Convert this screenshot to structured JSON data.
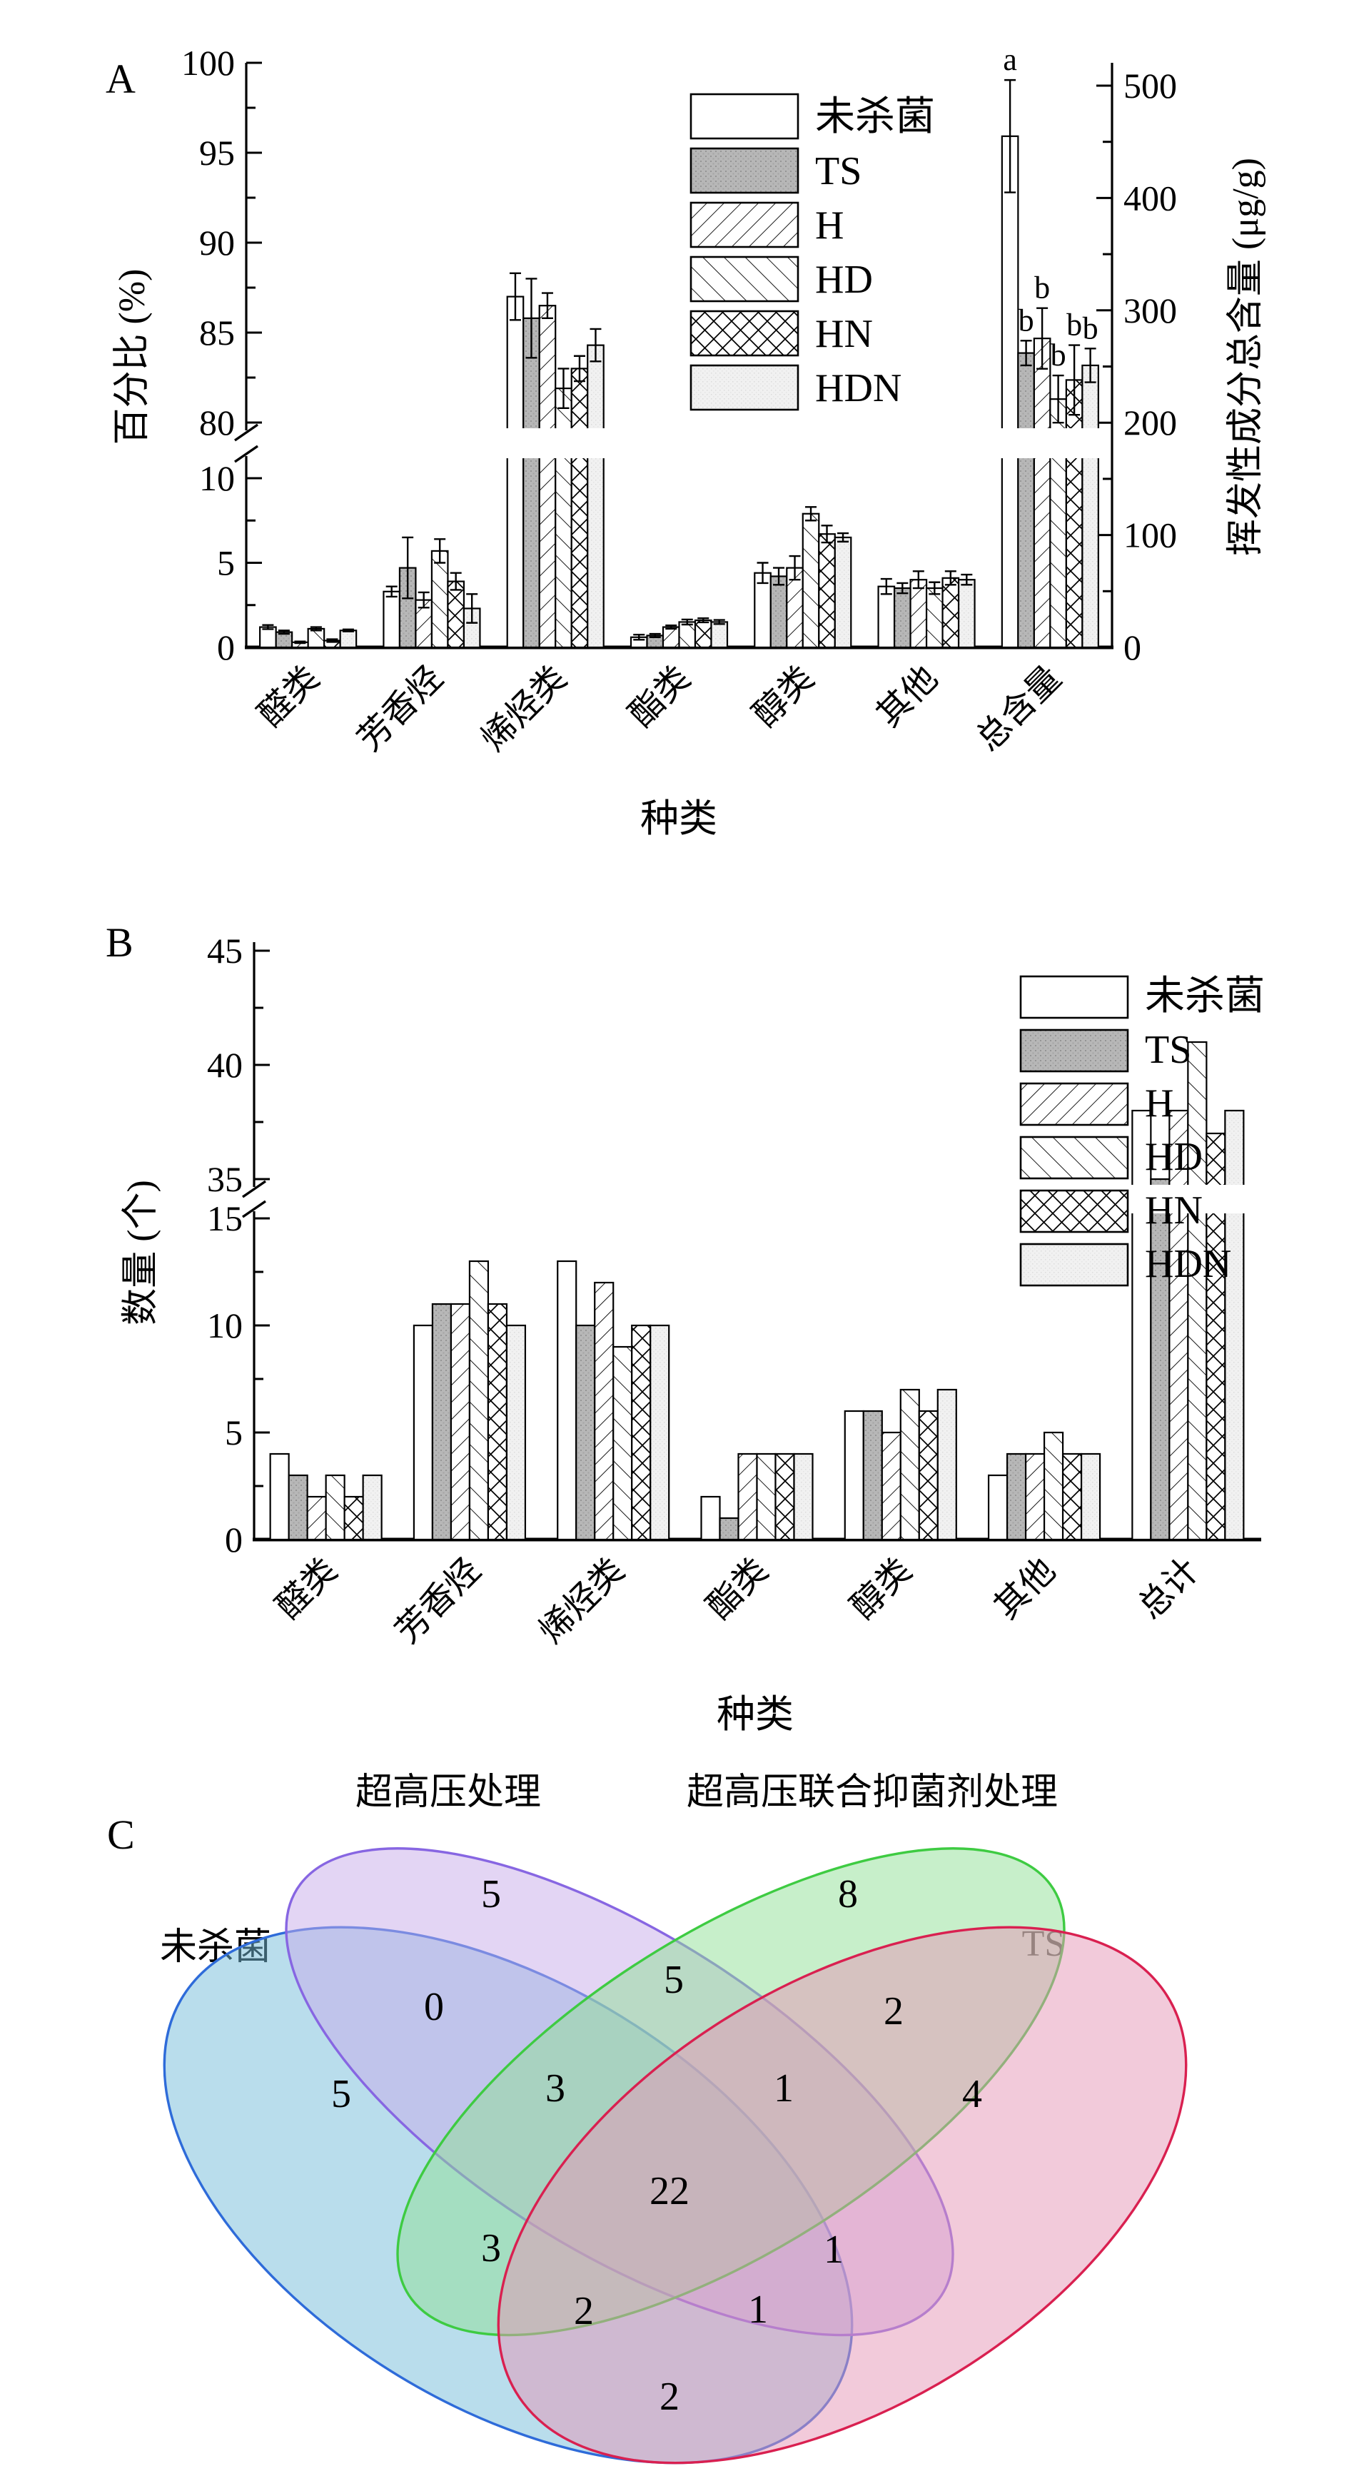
{
  "labels": {
    "panel_a": "A",
    "panel_b": "B",
    "panel_c": "C"
  },
  "chart_data": [
    {
      "panel": "A",
      "type": "bar",
      "xlabel": "种类",
      "ylabel_left": "百分比 (%)",
      "ylabel_right": "挥发性成分总含量 (μg/g)",
      "categories": [
        "醛类",
        "芳香烃",
        "烯烃类",
        "酯类",
        "醇类",
        "其他",
        "总含量"
      ],
      "right_axis_category": "总含量",
      "axis_break": {
        "lower_ticks": [
          0,
          5,
          10
        ],
        "upper_ticks": [
          80,
          85,
          90,
          95,
          100
        ]
      },
      "right_ticks": [
        0,
        100,
        200,
        300,
        400,
        500
      ],
      "legend": [
        "未杀菌",
        "TS",
        "H",
        "HD",
        "HN",
        "HDN"
      ],
      "series": [
        {
          "name": "未杀菌",
          "values": [
            1.2,
            3.3,
            87.0,
            0.6,
            4.4,
            3.6,
            455
          ],
          "errors": [
            0.12,
            0.3,
            1.3,
            0.15,
            0.6,
            0.45,
            50
          ],
          "sig_total": "a"
        },
        {
          "name": "TS",
          "values": [
            0.9,
            4.7,
            85.8,
            0.7,
            4.2,
            3.5,
            262
          ],
          "errors": [
            0.1,
            1.8,
            2.2,
            0.1,
            0.5,
            0.3,
            11
          ],
          "sig_total": "b"
        },
        {
          "name": "H",
          "values": [
            0.3,
            2.8,
            86.5,
            1.2,
            4.7,
            4.0,
            275
          ],
          "errors": [
            0.05,
            0.45,
            0.7,
            0.1,
            0.7,
            0.5,
            27
          ],
          "sig_total": "b"
        },
        {
          "name": "HD",
          "values": [
            1.1,
            5.7,
            81.9,
            1.5,
            7.9,
            3.5,
            221
          ],
          "errors": [
            0.1,
            0.7,
            1.1,
            0.15,
            0.4,
            0.35,
            21
          ],
          "sig_total": "b"
        },
        {
          "name": "HN",
          "values": [
            0.4,
            3.9,
            83.0,
            1.6,
            6.7,
            4.1,
            238
          ],
          "errors": [
            0.08,
            0.5,
            0.7,
            0.12,
            0.5,
            0.4,
            31
          ],
          "sig_total": "b"
        },
        {
          "name": "HDN",
          "values": [
            1.0,
            2.3,
            84.3,
            1.5,
            6.5,
            4.0,
            251
          ],
          "errors": [
            0.06,
            0.85,
            0.9,
            0.12,
            0.25,
            0.3,
            15
          ],
          "sig_total": "b"
        }
      ]
    },
    {
      "panel": "B",
      "type": "bar",
      "xlabel": "种类",
      "ylabel_left": "数量 (个)",
      "categories": [
        "醛类",
        "芳香烃",
        "烯烃类",
        "酯类",
        "醇类",
        "其他",
        "总计"
      ],
      "axis_break": {
        "lower_ticks": [
          0,
          5,
          10,
          15
        ],
        "upper_ticks": [
          35,
          40,
          45
        ]
      },
      "legend": [
        "未杀菌",
        "TS",
        "H",
        "HD",
        "HN",
        "HDN"
      ],
      "series": [
        {
          "name": "未杀菌",
          "values": [
            4,
            10,
            13,
            2,
            6,
            3,
            38
          ]
        },
        {
          "name": "TS",
          "values": [
            3,
            11,
            10,
            1,
            6,
            4,
            35
          ]
        },
        {
          "name": "H",
          "values": [
            2,
            11,
            12,
            4,
            5,
            4,
            38
          ]
        },
        {
          "name": "HD",
          "values": [
            3,
            13,
            9,
            4,
            7,
            5,
            41
          ]
        },
        {
          "name": "HN",
          "values": [
            2,
            11,
            10,
            4,
            6,
            4,
            37
          ]
        },
        {
          "name": "HDN",
          "values": [
            3,
            10,
            10,
            4,
            7,
            4,
            38
          ]
        }
      ]
    },
    {
      "panel": "C",
      "type": "venn",
      "sets": [
        {
          "key": "A",
          "label": "未杀菌",
          "stroke": "#2e6bd9",
          "fill": "#74bcd9"
        },
        {
          "key": "B",
          "label": "超高压处理",
          "stroke": "#8766e2",
          "fill": "#c7abe9"
        },
        {
          "key": "C",
          "label": "超高压联合抑菌剂处理",
          "stroke": "#3ecb42",
          "fill": "#8fdf96"
        },
        {
          "key": "D",
          "label": "TS",
          "stroke": "#d92050",
          "fill": "#e695b6"
        }
      ],
      "regions": {
        "A": 5,
        "B": 5,
        "C": 8,
        "D": 4,
        "AB": 0,
        "BC": 5,
        "CD": 2,
        "AC": 3,
        "BD": 1,
        "AD": 2,
        "ABC": 3,
        "BCD": 1,
        "ACD": 2,
        "ABD": 1,
        "ABCD": 22
      }
    }
  ],
  "pattern_legend": {
    "未杀菌": "plain-white",
    "TS": "gray-dots",
    "H": "diagonal-forward-hatch",
    "HD": "diagonal-back-hatch",
    "HN": "cross-hatch",
    "HDN": "light-dots"
  }
}
